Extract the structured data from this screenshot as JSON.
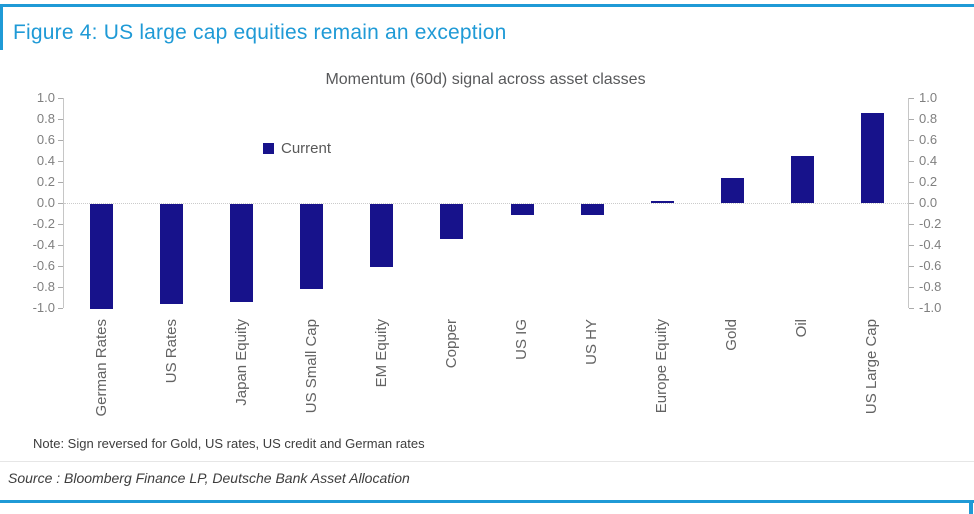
{
  "header": {
    "figure_title": "Figure 4: US large cap equities remain an exception"
  },
  "chart_data": {
    "type": "bar",
    "title": "Momentum (60d) signal across asset classes",
    "legend_label": "Current",
    "legend_position": "upper-left-inside",
    "categories": [
      "German Rates",
      "US Rates",
      "Japan Equity",
      "US Small Cap",
      "EM Equity",
      "Copper",
      "US IG",
      "US HY",
      "Europe Equity",
      "Gold",
      "Oil",
      "US Large Cap"
    ],
    "values": [
      -1.0,
      -0.95,
      -0.93,
      -0.81,
      -0.6,
      -0.33,
      -0.1,
      -0.1,
      0.02,
      0.24,
      0.45,
      0.86
    ],
    "ylim": [
      -1.0,
      1.0
    ],
    "ytick_step": 0.2,
    "ytick_labels": [
      "1.0",
      "0.8",
      "0.6",
      "0.4",
      "0.2",
      "0.0",
      "-0.2",
      "-0.4",
      "-0.6",
      "-0.8",
      "-1.0"
    ],
    "grid": "dotted-zero-line-only",
    "dual_y_axis": true,
    "bar_color": "#17128b"
  },
  "note": "Note: Sign reversed for Gold, US rates, US credit and German rates",
  "source": "Source : Bloomberg Finance LP, Deutsche Bank Asset Allocation",
  "colors": {
    "accent_blue": "#1f9ad6",
    "bar_navy": "#17128b",
    "axis_gray": "#c6c6c6",
    "tick_gray": "#ababab"
  }
}
